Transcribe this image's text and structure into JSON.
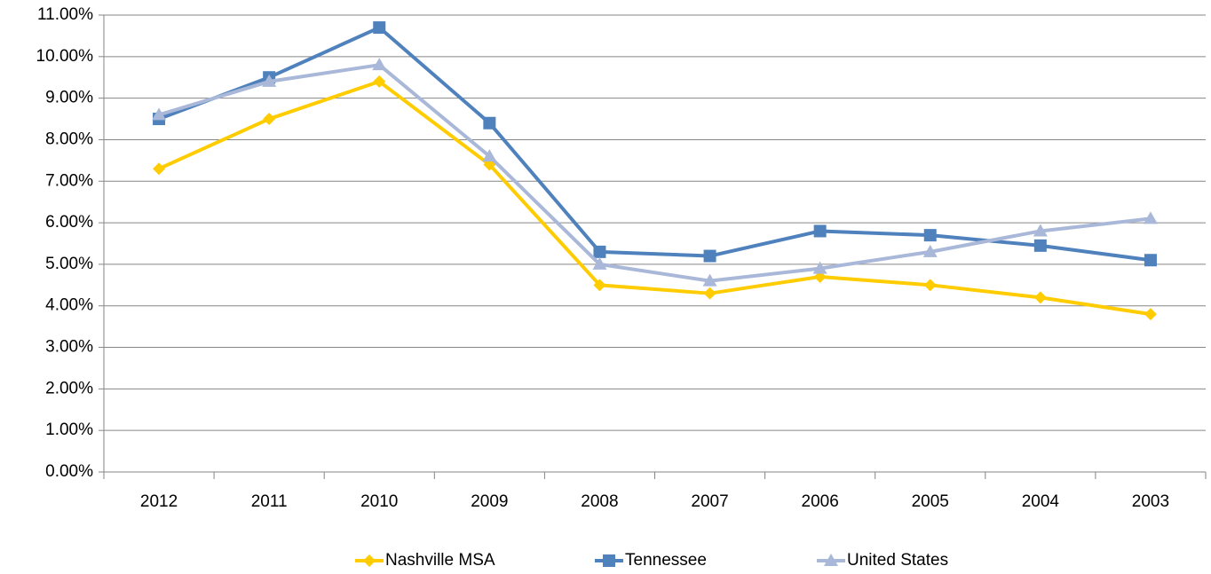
{
  "chart_data": {
    "type": "line",
    "categories": [
      "2012",
      "2011",
      "2010",
      "2009",
      "2008",
      "2007",
      "2006",
      "2005",
      "2004",
      "2003"
    ],
    "series": [
      {
        "name": "Nashville MSA",
        "color": "#ffcc00",
        "marker": "diamond",
        "values": [
          7.3,
          8.5,
          9.4,
          7.4,
          4.5,
          4.3,
          4.7,
          4.5,
          4.2,
          3.8
        ]
      },
      {
        "name": "Tennessee",
        "color": "#4f81bd",
        "marker": "square",
        "values": [
          8.5,
          9.5,
          10.7,
          8.4,
          5.3,
          5.2,
          5.8,
          5.7,
          5.45,
          5.1
        ]
      },
      {
        "name": "United States",
        "color": "#a9b8d8",
        "marker": "triangle",
        "values": [
          8.6,
          9.4,
          9.8,
          7.6,
          5.0,
          4.6,
          4.9,
          5.3,
          5.8,
          6.1
        ]
      }
    ],
    "ylim": [
      0,
      11
    ],
    "yticks": [
      {
        "value": 0,
        "label": "0.00%"
      },
      {
        "value": 1,
        "label": "1.00%"
      },
      {
        "value": 2,
        "label": "2.00%"
      },
      {
        "value": 3,
        "label": "3.00%"
      },
      {
        "value": 4,
        "label": "4.00%"
      },
      {
        "value": 5,
        "label": "5.00%"
      },
      {
        "value": 6,
        "label": "6.00%"
      },
      {
        "value": 7,
        "label": "7.00%"
      },
      {
        "value": 8,
        "label": "8.00%"
      },
      {
        "value": 9,
        "label": "9.00%"
      },
      {
        "value": 10,
        "label": "10.00%"
      },
      {
        "value": 11,
        "label": "11.00%"
      }
    ],
    "grid": true,
    "legend": "bottom"
  }
}
